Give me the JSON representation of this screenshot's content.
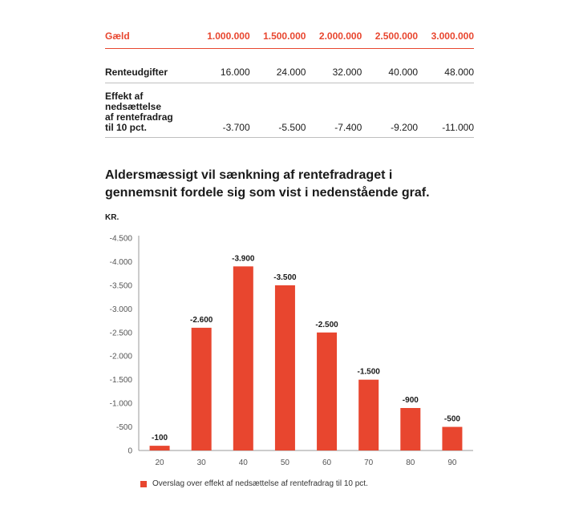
{
  "table": {
    "headers": [
      "Gæld",
      "1.000.000",
      "1.500.000",
      "2.000.000",
      "2.500.000",
      "3.000.000"
    ],
    "renteudgifter": {
      "label": "Renteudgifter",
      "values": [
        "16.000",
        "24.000",
        "32.000",
        "40.000",
        "48.000"
      ]
    },
    "effekt": {
      "label_lines": [
        "Effekt af",
        "nedsættelse",
        "af rentefradrag",
        "til 10 pct."
      ],
      "values": [
        "-3.700",
        "-5.500",
        "-7.400",
        "-9.200",
        "-11.000"
      ]
    }
  },
  "heading_lines": [
    "Aldersmæssigt vil sænkning af rentefradraget i",
    "gennemsnit fordele sig som vist i nedenstående graf."
  ],
  "colors": {
    "accent": "#e8462f",
    "text": "#1a1a1a",
    "axis": "#999999"
  },
  "chart_data": {
    "type": "bar",
    "unit_label": "KR.",
    "categories": [
      "20",
      "30",
      "40",
      "50",
      "60",
      "70",
      "80",
      "90"
    ],
    "series": [
      {
        "name": "Overslag over effekt af nedsættelse af rentefradrag til 10 pct.",
        "values": [
          -100,
          -2600,
          -3900,
          -3500,
          -2500,
          -1500,
          -900,
          -500
        ],
        "data_labels": [
          "-100",
          "-2.600",
          "-3.900",
          "-3.500",
          "-2.500",
          "-1.500",
          "-900",
          "-500"
        ]
      }
    ],
    "yticks": [
      0,
      -500,
      -1000,
      -1500,
      -2000,
      -2500,
      -3000,
      -3500,
      -4000,
      -4500
    ],
    "ytick_labels": [
      "0",
      "-500",
      "-1.000",
      "-1.500",
      "-2.000",
      "-2.500",
      "-3.000",
      "-3.500",
      "-4.000",
      "-4.500"
    ],
    "ylim": [
      0,
      -4500
    ],
    "grid": false,
    "legend_position": "bottom-left"
  }
}
